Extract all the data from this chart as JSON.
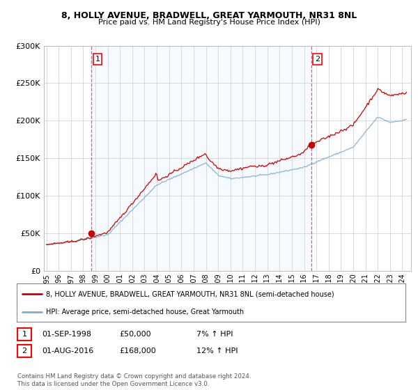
{
  "title1": "8, HOLLY AVENUE, BRADWELL, GREAT YARMOUTH, NR31 8NL",
  "title2": "Price paid vs. HM Land Registry's House Price Index (HPI)",
  "legend_line1": "8, HOLLY AVENUE, BRADWELL, GREAT YARMOUTH, NR31 8NL (semi-detached house)",
  "legend_line2": "HPI: Average price, semi-detached house, Great Yarmouth",
  "sale1_date": "01-SEP-1998",
  "sale1_price": "£50,000",
  "sale1_hpi": "7% ↑ HPI",
  "sale2_date": "01-AUG-2016",
  "sale2_price": "£168,000",
  "sale2_hpi": "12% ↑ HPI",
  "footer": "Contains HM Land Registry data © Crown copyright and database right 2024.\nThis data is licensed under the Open Government Licence v3.0.",
  "line_color_red": "#cc0000",
  "line_color_blue": "#7aaed6",
  "marker_color": "#cc0000",
  "vline_color": "#e06060",
  "shade_color": "#ddeeff",
  "background_color": "#ffffff",
  "grid_color": "#cccccc",
  "ylim": [
    0,
    300000
  ],
  "yticks": [
    0,
    50000,
    100000,
    150000,
    200000,
    250000,
    300000
  ],
  "sale1_x": 1998.67,
  "sale1_y": 50000,
  "sale2_x": 2016.58,
  "sale2_y": 168000,
  "xmin": 1994.8,
  "xmax": 2024.7
}
